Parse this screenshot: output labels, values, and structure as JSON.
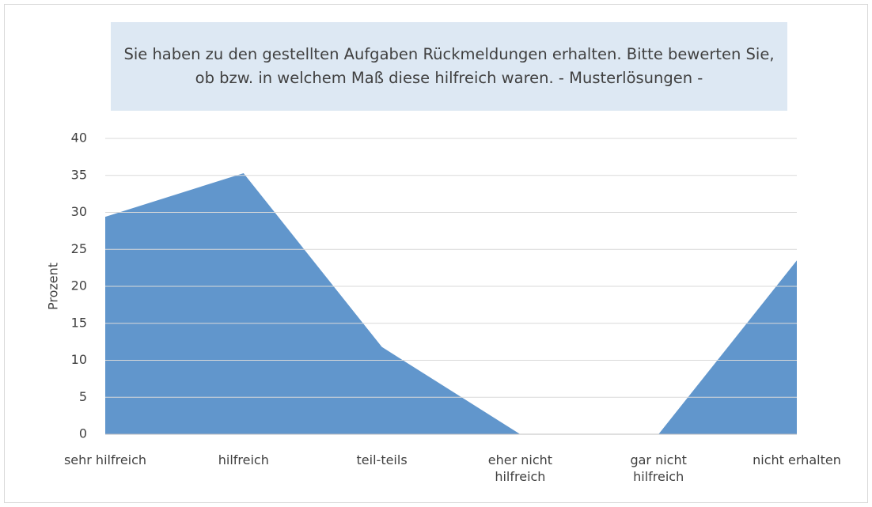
{
  "chart_data": {
    "type": "area",
    "title": "Sie haben zu den gestellten Aufgaben Rückmeldungen erhalten. Bitte bewerten Sie, ob bzw. in welchem Maß diese hilfreich waren. - Musterlösungen -",
    "y_label": "Prozent",
    "categories": [
      "sehr hilfreich",
      "hilfreich",
      "teil-teils",
      "eher nicht hilfreich",
      "gar nicht hilfreich",
      "nicht erhalten"
    ],
    "values": [
      29.4,
      35.3,
      11.8,
      0,
      0,
      23.5
    ],
    "color": "#6196cc",
    "ylim": [
      0,
      40
    ],
    "yticks": [
      0,
      5,
      10,
      15,
      20,
      25,
      30,
      35,
      40
    ],
    "grid": true
  }
}
